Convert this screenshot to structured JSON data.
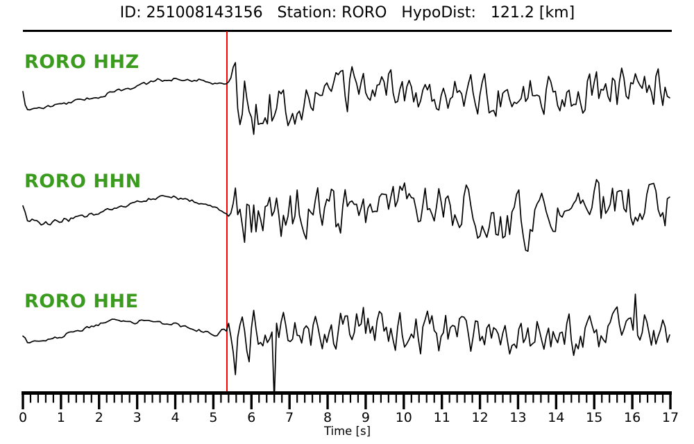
{
  "header": {
    "title": "ID: 251008143156   Station: RORO   HypoDist:   121.2 [km]"
  },
  "chart_data": {
    "type": "line",
    "kind": "seismogram-three-component",
    "title": "ID: 251008143156   Station: RORO   HypoDist:   121.2 [km]",
    "event_id": "251008143156",
    "station": "RORO",
    "hypo_dist_km": 121.2,
    "xlabel": "Time [s]",
    "x_range": [
      0,
      17
    ],
    "x_ticks": [
      0,
      1,
      2,
      3,
      4,
      5,
      6,
      7,
      8,
      9,
      10,
      11,
      12,
      13,
      14,
      15,
      16,
      17
    ],
    "x_major_tick_step": 1,
    "x_minor_tick_step": 0.2,
    "grid": false,
    "legend": false,
    "trace_color": "#000000",
    "label_color": "#3a9b1e",
    "pick": {
      "time_s": 5.35,
      "color": "#ff0000"
    },
    "traces": [
      {
        "label": "RORO HHZ",
        "channel": "HHZ",
        "seed": 7,
        "drift": [
          [
            0,
            134
          ],
          [
            0.07,
            157
          ],
          [
            0.5,
            156
          ],
          [
            1.0,
            150
          ],
          [
            2.0,
            139
          ],
          [
            3.0,
            124
          ],
          [
            3.6,
            115
          ],
          [
            4.3,
            113
          ],
          [
            4.9,
            118
          ],
          [
            5.34,
            120
          ],
          [
            5.5,
            135
          ],
          [
            5.9,
            150
          ],
          [
            6.8,
            152
          ],
          [
            7.6,
            140
          ],
          [
            8.4,
            130
          ],
          [
            9.0,
            118
          ],
          [
            9.6,
            122
          ],
          [
            10.4,
            132
          ],
          [
            11.2,
            130
          ],
          [
            12,
            135
          ],
          [
            13,
            134
          ],
          [
            14,
            136
          ],
          [
            15,
            132
          ],
          [
            16,
            126
          ],
          [
            17,
            128
          ]
        ],
        "noise_amp": [
          [
            0,
            2
          ],
          [
            2,
            2.2
          ],
          [
            5.34,
            2.5
          ]
        ],
        "post_env": [
          [
            5.34,
            30
          ],
          [
            5.55,
            55
          ],
          [
            6.2,
            60
          ],
          [
            7.0,
            50
          ],
          [
            7.7,
            30
          ],
          [
            8.3,
            35
          ],
          [
            9.0,
            55
          ],
          [
            9.7,
            40
          ],
          [
            10.3,
            42
          ],
          [
            11,
            40
          ],
          [
            12,
            42
          ],
          [
            12.8,
            45
          ],
          [
            13.6,
            38
          ],
          [
            14.3,
            35
          ],
          [
            15,
            38
          ],
          [
            16,
            40
          ],
          [
            16.6,
            45
          ],
          [
            17,
            35
          ]
        ],
        "spikes": []
      },
      {
        "label": "RORO HHN",
        "channel": "HHN",
        "seed": 42,
        "drift": [
          [
            0,
            296
          ],
          [
            0.12,
            316
          ],
          [
            0.55,
            322
          ],
          [
            1.1,
            318
          ],
          [
            1.8,
            310
          ],
          [
            2.6,
            298
          ],
          [
            3.3,
            287
          ],
          [
            3.9,
            283
          ],
          [
            4.5,
            290
          ],
          [
            5.0,
            298
          ],
          [
            5.34,
            305
          ],
          [
            6,
            312
          ],
          [
            7,
            310
          ],
          [
            8,
            306
          ],
          [
            9,
            300
          ],
          [
            9.8,
            295
          ],
          [
            10.8,
            290
          ],
          [
            11.8,
            305
          ],
          [
            12.6,
            318
          ],
          [
            13.3,
            322
          ],
          [
            14,
            310
          ],
          [
            14.8,
            300
          ],
          [
            15.6,
            295
          ],
          [
            16.4,
            298
          ],
          [
            17,
            300
          ]
        ],
        "noise_amp": [
          [
            0,
            3.5
          ],
          [
            0.9,
            4
          ],
          [
            1.6,
            2.5
          ],
          [
            3,
            2
          ],
          [
            5.34,
            2.5
          ]
        ],
        "post_env": [
          [
            5.34,
            35
          ],
          [
            5.5,
            60
          ],
          [
            6.3,
            58
          ],
          [
            7.2,
            52
          ],
          [
            8,
            48
          ],
          [
            9,
            52
          ],
          [
            10,
            45
          ],
          [
            10.8,
            42
          ],
          [
            11.5,
            45
          ],
          [
            12.3,
            50
          ],
          [
            13,
            60
          ],
          [
            13.6,
            50
          ],
          [
            14.2,
            42
          ],
          [
            15,
            48
          ],
          [
            15.8,
            50
          ],
          [
            16.5,
            45
          ],
          [
            17,
            40
          ]
        ],
        "spikes": []
      },
      {
        "label": "RORO HHE",
        "channel": "HHE",
        "seed": 1337,
        "drift": [
          [
            0,
            486
          ],
          [
            0.12,
            493
          ],
          [
            0.7,
            490
          ],
          [
            1.4,
            478
          ],
          [
            2.3,
            463
          ],
          [
            3.2,
            464
          ],
          [
            4.0,
            468
          ],
          [
            4.7,
            477
          ],
          [
            5.1,
            482
          ],
          [
            5.25,
            473
          ],
          [
            5.34,
            480
          ],
          [
            6,
            488
          ],
          [
            7,
            482
          ],
          [
            8,
            478
          ],
          [
            9,
            475
          ],
          [
            10,
            478
          ],
          [
            11,
            480
          ],
          [
            12,
            478
          ],
          [
            13,
            480
          ],
          [
            14,
            482
          ],
          [
            15,
            478
          ],
          [
            16,
            475
          ],
          [
            17,
            478
          ]
        ],
        "noise_amp": [
          [
            0,
            2.5
          ],
          [
            5.34,
            2.5
          ]
        ],
        "post_env": [
          [
            5.34,
            30
          ],
          [
            5.6,
            50
          ],
          [
            6.3,
            48
          ],
          [
            7,
            45
          ],
          [
            7.8,
            40
          ],
          [
            8.6,
            45
          ],
          [
            9.4,
            48
          ],
          [
            10.2,
            42
          ],
          [
            11,
            45
          ],
          [
            12,
            42
          ],
          [
            13,
            40
          ],
          [
            14,
            38
          ],
          [
            15,
            40
          ],
          [
            15.8,
            42
          ],
          [
            16.5,
            38
          ],
          [
            17,
            35
          ]
        ],
        "spikes": [
          [
            5.58,
            540
          ],
          [
            6.62,
            578
          ],
          [
            16.08,
            424
          ]
        ]
      }
    ]
  }
}
